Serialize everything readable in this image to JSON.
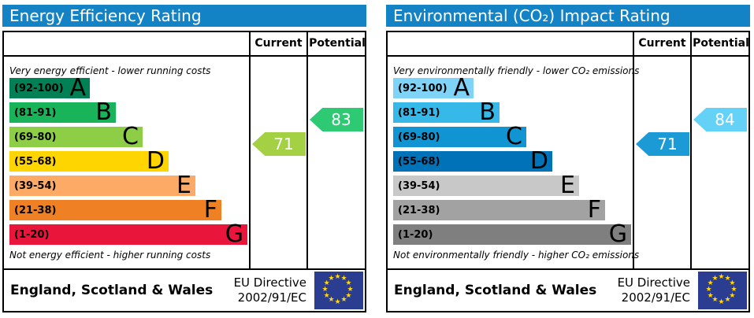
{
  "chart_data": [
    {
      "type": "bar",
      "title": "Energy Efficiency Rating",
      "subtitle_top": "Very energy efficient - lower running costs",
      "subtitle_bottom": "Not energy efficient - higher running costs",
      "categories": [
        "A (92-100)",
        "B (81-91)",
        "C (69-80)",
        "D (55-68)",
        "E (39-54)",
        "F (21-38)",
        "G (1-20)"
      ],
      "band_colors": [
        "#008054",
        "#19b459",
        "#8dce46",
        "#ffd500",
        "#fcaa65",
        "#ef8023",
        "#e9153b"
      ],
      "current_value": 71,
      "current_band": "C",
      "potential_value": 83,
      "potential_band": "B",
      "value_range": [
        1,
        100
      ],
      "columns": [
        "Current",
        "Potential"
      ],
      "legend_position": "none",
      "grid": false
    },
    {
      "type": "bar",
      "title": "Environmental (CO₂) Impact Rating",
      "subtitle_top": "Very environmentally friendly - lower CO₂ emissions",
      "subtitle_bottom": "Not environmentally friendly - higher CO₂ emissions",
      "categories": [
        "A (92-100)",
        "B (81-91)",
        "C (69-80)",
        "D (55-68)",
        "E (39-54)",
        "F (21-38)",
        "G (1-20)"
      ],
      "band_colors": [
        "#7ed3f7",
        "#36b9e9",
        "#1095d2",
        "#0073b8",
        "#c8c8c8",
        "#a2a2a2",
        "#7f7f7f"
      ],
      "current_value": 71,
      "current_band": "C",
      "potential_value": 84,
      "potential_band": "B",
      "value_range": [
        1,
        100
      ],
      "columns": [
        "Current",
        "Potential"
      ],
      "legend_position": "none",
      "grid": false
    }
  ],
  "theme": {
    "header_bg": "#1483c6",
    "header_text": "#ffffff",
    "border": "#000000",
    "eu_flag_bg": "#2b3d91",
    "eu_star_color": "#ffd617",
    "eu_star_glyph": "★"
  },
  "panels": [
    {
      "title": "Energy Efficiency Rating",
      "columns": {
        "current": "Current",
        "potential": "Potential"
      },
      "top_caption": "Very energy efficient - lower running costs",
      "bottom_caption": "Not energy efficient - higher running costs",
      "bands": [
        {
          "letter": "A",
          "range": "(92-100)",
          "color": "#008054"
        },
        {
          "letter": "B",
          "range": "(81-91)",
          "color": "#19b459"
        },
        {
          "letter": "C",
          "range": "(69-80)",
          "color": "#8dce46"
        },
        {
          "letter": "D",
          "range": "(55-68)",
          "color": "#ffd500"
        },
        {
          "letter": "E",
          "range": "(39-54)",
          "color": "#fcaa65"
        },
        {
          "letter": "F",
          "range": "(21-38)",
          "color": "#ef8023"
        },
        {
          "letter": "G",
          "range": "(1-20)",
          "color": "#e9153b"
        }
      ],
      "arrows": {
        "current": {
          "value": "71",
          "color": "#a3d143",
          "band_index": 2
        },
        "potential": {
          "value": "83",
          "color": "#2ec973",
          "band_index": 1
        }
      },
      "footer": {
        "region": "England, Scotland & Wales",
        "directive_line1": "EU Directive",
        "directive_line2": "2002/91/EC"
      }
    },
    {
      "title": "Environmental (CO₂) Impact Rating",
      "columns": {
        "current": "Current",
        "potential": "Potential"
      },
      "top_caption": "Very environmentally friendly - lower CO₂ emissions",
      "bottom_caption": "Not environmentally friendly - higher CO₂ emissions",
      "bands": [
        {
          "letter": "A",
          "range": "(92-100)",
          "color": "#7ed3f7"
        },
        {
          "letter": "B",
          "range": "(81-91)",
          "color": "#36b9e9"
        },
        {
          "letter": "C",
          "range": "(69-80)",
          "color": "#1095d2"
        },
        {
          "letter": "D",
          "range": "(55-68)",
          "color": "#0073b8"
        },
        {
          "letter": "E",
          "range": "(39-54)",
          "color": "#c8c8c8"
        },
        {
          "letter": "F",
          "range": "(21-38)",
          "color": "#a2a2a2"
        },
        {
          "letter": "G",
          "range": "(1-20)",
          "color": "#7f7f7f"
        }
      ],
      "arrows": {
        "current": {
          "value": "71",
          "color": "#1b9ad6",
          "band_index": 2
        },
        "potential": {
          "value": "84",
          "color": "#64d2f6",
          "band_index": 1
        }
      },
      "footer": {
        "region": "England, Scotland & Wales",
        "directive_line1": "EU Directive",
        "directive_line2": "2002/91/EC"
      }
    }
  ]
}
